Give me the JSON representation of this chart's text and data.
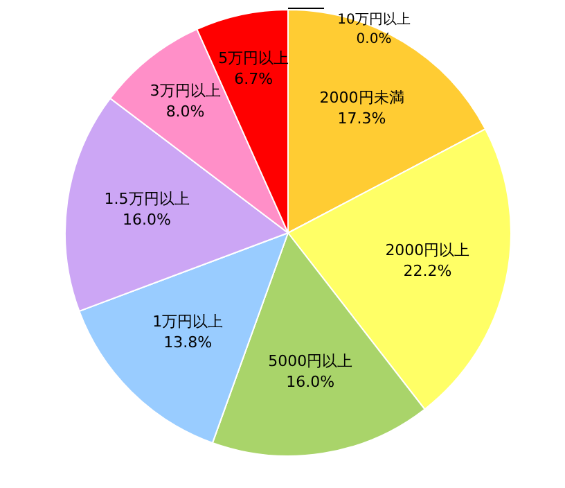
{
  "chart_data": {
    "type": "pie",
    "categories": [
      "10万円以上",
      "2000円未満",
      "2000円以上",
      "5000円以上",
      "1万円以上",
      "1.5万円以上",
      "3万円以上",
      "5万円以上"
    ],
    "values": [
      0.0,
      17.3,
      22.2,
      16.0,
      13.8,
      16.0,
      8.0,
      6.7
    ],
    "value_labels": [
      "0.0%",
      "17.3%",
      "22.2%",
      "16.0%",
      "13.8%",
      "16.0%",
      "8.0%",
      "6.7%"
    ],
    "colors": [
      "#7030a0",
      "#ffcc33",
      "#ffff66",
      "#a9d46a",
      "#99ccff",
      "#cca6f5",
      "#ff8fc8",
      "#ff0000"
    ]
  }
}
